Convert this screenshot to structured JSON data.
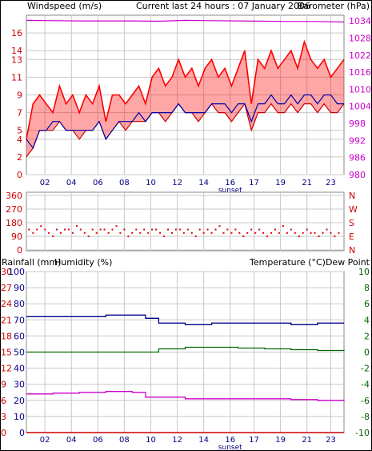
{
  "header": {
    "windspeed_label": "Windspeed (m/s)",
    "title": "Current last 24 hours : 07 January 2006",
    "barometer_label": "Barometer (hPa)"
  },
  "colors": {
    "windspeed": "#ff0000",
    "gust": "#cc0000",
    "average": "#0000aa",
    "barometer": "#cc00cc",
    "direction": "#dd0000",
    "rainfall": "#cc0000",
    "humidity": "#00008b",
    "temperature": "#006600",
    "dewpoint": "#cc00cc",
    "grid": "#c8c8c8",
    "axis_left": "#cc0000",
    "axis_right": "#cc00cc"
  },
  "x_axis": {
    "ticks": [
      "02",
      "04",
      "06",
      "08",
      "10",
      "12",
      "14",
      "16",
      "17",
      "19",
      "21",
      "23"
    ],
    "sunset_label": "sunset"
  },
  "panel2": {
    "ticks": [
      "0",
      "90",
      "180",
      "270",
      "360"
    ],
    "compass": [
      "N",
      "E",
      "S",
      "W",
      "N"
    ]
  },
  "panel3": {
    "rainfall_label": "Rainfall (mm)",
    "humidity_label": "Humidity (%)",
    "temperature_label": "Temperature (°C)",
    "dewpoint_label": "Dew Point",
    "rain_ticks": [
      "0",
      "3",
      "6",
      "9",
      "12",
      "15",
      "18",
      "21",
      "24",
      "27",
      "30"
    ],
    "humidity_ticks": [
      "0",
      "10",
      "20",
      "30",
      "40",
      "50",
      "60",
      "70",
      "80",
      "90",
      "100"
    ],
    "temp_ticks": [
      "-10",
      "-8",
      "-6",
      "-4",
      "-2",
      "0",
      "2",
      "4",
      "6",
      "8",
      "10"
    ]
  },
  "chart_data": [
    {
      "type": "line",
      "title": "Current last 24 hours : 07 January 2006",
      "ylabel": "Windspeed (m/s)",
      "y2label": "Barometer (hPa)",
      "ylim": [
        0,
        18
      ],
      "y2lim": [
        980,
        1036
      ],
      "yticks": [
        0,
        2,
        4,
        5,
        7,
        9,
        11,
        13,
        14,
        16
      ],
      "y2ticks": [
        980,
        986,
        992,
        998,
        1004,
        1010,
        1016,
        1022,
        1028,
        1034
      ],
      "series": [
        {
          "name": "Windspeed (m/s)",
          "axis": "left",
          "x": [
            0.0,
            0.5,
            1.0,
            1.5,
            2.0,
            2.5,
            3.0,
            3.5,
            4.0,
            4.5,
            5.0,
            5.5,
            6.0,
            6.5,
            7.0,
            7.5,
            8.0,
            8.5,
            9.0,
            9.5,
            10.0,
            10.5,
            11.0,
            11.5,
            12.0,
            12.5,
            13.0,
            13.5,
            14.0,
            14.5,
            15.0,
            15.5,
            16.0,
            16.5,
            17.0,
            17.5,
            18.0,
            18.5,
            19.0,
            19.5,
            20.0,
            20.5,
            21.0,
            21.5,
            22.0,
            22.5,
            23.0,
            23.5,
            24.0
          ],
          "y": [
            4,
            8,
            9,
            8,
            7,
            10,
            8,
            9,
            7,
            9,
            8,
            10,
            6,
            9,
            9,
            8,
            9,
            10,
            8,
            11,
            12,
            10,
            11,
            13,
            11,
            12,
            10,
            12,
            13,
            11,
            12,
            10,
            12,
            14,
            8,
            13,
            12,
            14,
            12,
            13,
            14,
            12,
            15,
            13,
            12,
            13,
            11,
            12,
            13
          ]
        },
        {
          "name": "Windspeed minimum",
          "axis": "left",
          "x": [
            0.0,
            0.5,
            1.0,
            1.5,
            2.0,
            2.5,
            3.0,
            3.5,
            4.0,
            4.5,
            5.0,
            5.5,
            6.0,
            6.5,
            7.0,
            7.5,
            8.0,
            8.5,
            9.0,
            9.5,
            10.0,
            10.5,
            11.0,
            11.5,
            12.0,
            12.5,
            13.0,
            13.5,
            14.0,
            14.5,
            15.0,
            15.5,
            16.0,
            16.5,
            17.0,
            17.5,
            18.0,
            18.5,
            19.0,
            19.5,
            20.0,
            20.5,
            21.0,
            21.5,
            22.0,
            22.5,
            23.0,
            23.5,
            24.0
          ],
          "y": [
            2,
            3,
            5,
            5,
            5,
            6,
            5,
            5,
            4,
            5,
            5,
            6,
            4,
            5,
            6,
            5,
            6,
            6,
            6,
            7,
            7,
            6,
            7,
            8,
            7,
            7,
            6,
            7,
            8,
            7,
            7,
            6,
            7,
            8,
            5,
            7,
            7,
            8,
            7,
            7,
            8,
            7,
            8,
            8,
            7,
            8,
            7,
            7,
            8
          ]
        },
        {
          "name": "Average windspeed",
          "axis": "left",
          "x": [
            0.0,
            0.5,
            1.0,
            1.5,
            2.0,
            2.5,
            3.0,
            3.5,
            4.0,
            4.5,
            5.0,
            5.5,
            6.0,
            6.5,
            7.0,
            7.5,
            8.0,
            8.5,
            9.0,
            9.5,
            10.0,
            10.5,
            11.0,
            11.5,
            12.0,
            12.5,
            13.0,
            13.5,
            14.0,
            14.5,
            15.0,
            15.5,
            16.0,
            16.5,
            17.0,
            17.5,
            18.0,
            18.5,
            19.0,
            19.5,
            20.0,
            20.5,
            21.0,
            21.5,
            22.0,
            22.5,
            23.0,
            23.5,
            24.0
          ],
          "y": [
            4,
            3,
            5,
            5,
            6,
            6,
            5,
            5,
            5,
            5,
            5,
            6,
            4,
            5,
            6,
            6,
            6,
            7,
            6,
            7,
            7,
            7,
            7,
            8,
            7,
            7,
            7,
            7,
            8,
            8,
            8,
            7,
            8,
            8,
            6,
            8,
            8,
            9,
            8,
            8,
            9,
            8,
            9,
            9,
            8,
            9,
            9,
            8,
            8
          ]
        },
        {
          "name": "Barometer (hPa)",
          "axis": "right",
          "x": [
            0,
            2,
            4,
            6,
            8,
            10,
            12,
            14,
            16,
            18,
            20,
            22,
            24
          ],
          "y": [
            1034.2,
            1034.1,
            1034.0,
            1034.0,
            1034.0,
            1033.9,
            1034.2,
            1034.1,
            1034.0,
            1033.9,
            1033.8,
            1033.8,
            1033.6
          ]
        }
      ]
    },
    {
      "type": "scatter",
      "ylabel": "Wind direction",
      "ylim": [
        0,
        360
      ],
      "yticks": [
        0,
        90,
        180,
        270,
        360
      ],
      "series": [
        {
          "name": "Wind direction",
          "x": [
            0.2,
            0.5,
            0.8,
            1.1,
            1.4,
            1.7,
            2.0,
            2.3,
            2.6,
            2.9,
            3.2,
            3.5,
            3.8,
            4.1,
            4.4,
            4.7,
            5.0,
            5.3,
            5.6,
            5.9,
            6.2,
            6.5,
            6.8,
            7.1,
            7.4,
            7.7,
            8.0,
            8.3,
            8.6,
            8.9,
            9.2,
            9.5,
            9.8,
            10.1,
            10.4,
            10.7,
            11.0,
            11.3,
            11.6,
            11.9,
            12.2,
            12.5,
            12.8,
            13.1,
            13.4,
            13.7,
            14.0,
            14.3,
            14.6,
            14.9,
            15.2,
            15.5,
            15.8,
            16.1,
            16.4,
            16.7,
            17.0,
            17.3,
            17.6,
            17.9,
            18.2,
            18.5,
            18.8,
            19.1,
            19.4,
            19.7,
            20.0,
            20.3,
            20.6,
            20.9,
            21.2,
            21.5,
            21.8,
            22.1,
            22.4,
            22.7,
            23.0,
            23.3,
            23.6
          ],
          "y": [
            135,
            112,
            135,
            158,
            135,
            112,
            90,
            135,
            112,
            135,
            135,
            112,
            158,
            135,
            112,
            90,
            135,
            112,
            135,
            135,
            112,
            135,
            158,
            112,
            135,
            90,
            112,
            135,
            112,
            135,
            112,
            135,
            135,
            112,
            90,
            135,
            112,
            135,
            135,
            112,
            135,
            112,
            90,
            135,
            112,
            135,
            112,
            135,
            158,
            112,
            135,
            112,
            135,
            112,
            90,
            112,
            135,
            112,
            135,
            112,
            90,
            112,
            135,
            112,
            158,
            112,
            135,
            112,
            90,
            112,
            135,
            112,
            112,
            90,
            112,
            135,
            112,
            90,
            112
          ]
        }
      ]
    },
    {
      "type": "line",
      "ylabel": "Rainfall (mm)",
      "y2label": "Temperature (°C)",
      "ylim": [
        0,
        30
      ],
      "humidity_lim": [
        0,
        100
      ],
      "y2lim": [
        -10,
        10
      ],
      "series": [
        {
          "name": "Rainfall (mm)",
          "axis": "rainfall",
          "x": [
            0,
            24
          ],
          "y": [
            0,
            0
          ]
        },
        {
          "name": "Humidity (%)",
          "axis": "humidity",
          "x": [
            0,
            2,
            4,
            6,
            8,
            9,
            10,
            12,
            14,
            16,
            18,
            20,
            21,
            22,
            23,
            24
          ],
          "y": [
            72,
            72,
            72,
            73,
            73,
            71,
            68,
            67,
            68,
            68,
            68,
            67,
            67,
            68,
            68,
            68
          ]
        },
        {
          "name": "Temperature (°C)",
          "axis": "temperature",
          "x": [
            0,
            2,
            4,
            6,
            8,
            10,
            12,
            14,
            16,
            18,
            20,
            22,
            24
          ],
          "y": [
            0.0,
            0.0,
            0.0,
            0.0,
            0.0,
            0.4,
            0.6,
            0.6,
            0.5,
            0.4,
            0.3,
            0.2,
            0.3
          ]
        },
        {
          "name": "Dew Point",
          "axis": "temperature",
          "x": [
            0,
            2,
            4,
            6,
            8,
            9,
            10,
            12,
            14,
            16,
            18,
            20,
            22,
            24
          ],
          "y": [
            -5.2,
            -5.1,
            -5.0,
            -4.9,
            -5.0,
            -5.6,
            -5.6,
            -5.8,
            -5.8,
            -5.8,
            -5.8,
            -5.9,
            -6.0,
            -5.9
          ]
        }
      ]
    }
  ]
}
